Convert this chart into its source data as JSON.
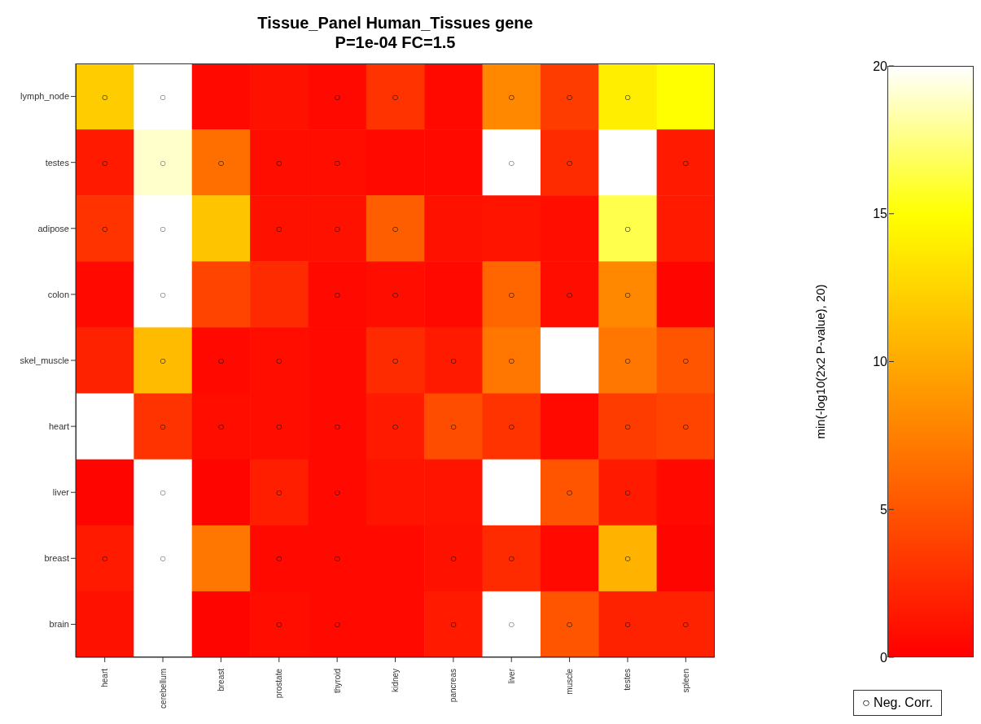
{
  "chart_data": {
    "type": "heatmap",
    "title": "Tissue_Panel Human_Tissues gene",
    "subtitle": "P=1e-04 FC=1.5",
    "clabel": "min(-log10(2x2 P-value), 20)",
    "categories": [
      "heart",
      "cerebellum",
      "breast",
      "prostate",
      "thyroid",
      "kidney",
      "pancreas",
      "liver",
      "muscle",
      "testes",
      "spleen"
    ],
    "y_categories": [
      "lymph_node",
      "testes",
      "adipose",
      "colon",
      "skel_muscle",
      "heart",
      "liver",
      "breast",
      "brain"
    ],
    "cells": [
      [
        12,
        20,
        0.5,
        1,
        0.5,
        3,
        0.5,
        8,
        3.5,
        14,
        15
      ],
      [
        1.5,
        19,
        6.5,
        0.8,
        0.8,
        0.5,
        0.5,
        20,
        2.5,
        20,
        1.5
      ],
      [
        3,
        20,
        11.5,
        1,
        1,
        5.5,
        1,
        1.2,
        0.8,
        16.5,
        1.5
      ],
      [
        0.5,
        20,
        4,
        2.5,
        0.5,
        0.8,
        0.5,
        6,
        0.8,
        8,
        0.3
      ],
      [
        2,
        11,
        0.5,
        0.8,
        0.5,
        2.5,
        1.5,
        7,
        20,
        7,
        5
      ],
      [
        20,
        3,
        0.8,
        0.8,
        0.5,
        1.5,
        4.5,
        3,
        0.5,
        3.5,
        4
      ],
      [
        0.3,
        20,
        0.3,
        1.8,
        0.5,
        1.2,
        1.2,
        20,
        5,
        1.5,
        0.5
      ],
      [
        1.5,
        20,
        7,
        0.5,
        0.5,
        0.5,
        1,
        2.5,
        0.5,
        10.5,
        0.3
      ],
      [
        1,
        20,
        0.3,
        0.8,
        0.5,
        0.5,
        1.5,
        20,
        5,
        2,
        2
      ]
    ],
    "cell_labels": [
      [
        "○",
        "○",
        null,
        null,
        "○",
        "○",
        null,
        "○",
        "○",
        "○",
        null
      ],
      [
        "○",
        "○",
        "○",
        "○",
        "○",
        null,
        null,
        "○",
        "○",
        null,
        "○"
      ],
      [
        "○",
        "○",
        null,
        "○",
        "○",
        "○",
        null,
        null,
        null,
        "○",
        null
      ],
      [
        null,
        "○",
        null,
        null,
        "○",
        "○",
        null,
        "○",
        "○",
        "○",
        null
      ],
      [
        null,
        "○",
        "○",
        "○",
        null,
        "○",
        "○",
        "○",
        null,
        "○",
        "○"
      ],
      [
        null,
        "○",
        "○",
        "○",
        "○",
        "○",
        "○",
        "○",
        null,
        "○",
        "○"
      ],
      [
        null,
        "○",
        null,
        "○",
        "○",
        null,
        null,
        null,
        "○",
        "○",
        null
      ],
      [
        "○",
        "○",
        null,
        "○",
        "○",
        null,
        "○",
        "○",
        null,
        "○",
        null
      ],
      [
        null,
        null,
        null,
        "○",
        "○",
        null,
        "○",
        "○",
        "○",
        "○",
        "○"
      ]
    ],
    "clim": [
      0,
      20
    ],
    "cticks": [
      0,
      5,
      10,
      15,
      20
    ],
    "annotations": [
      "○ Neg. Corr."
    ]
  }
}
